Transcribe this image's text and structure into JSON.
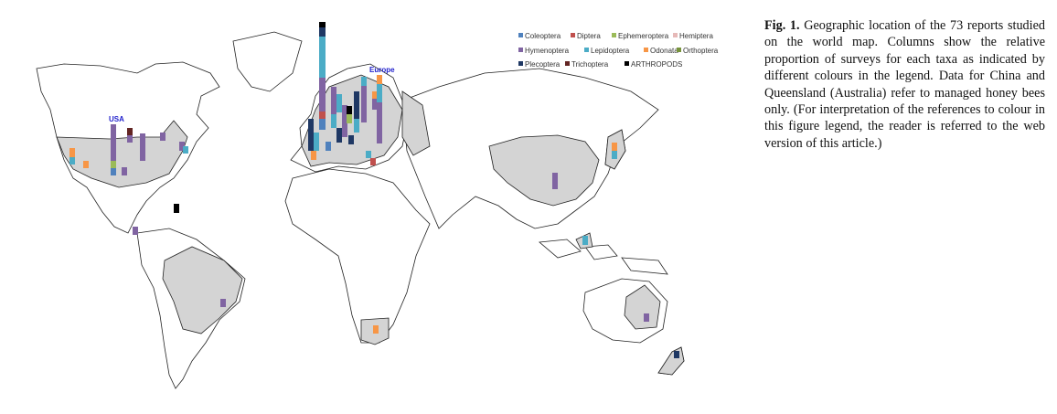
{
  "caption": {
    "label": "Fig. 1.",
    "text": "Geographic location of the 73 reports studied on the world map. Columns show the relative proportion of surveys for each taxa as indicated by different colours in the legend. Data for China and Queensland (Australia) refer to managed honey bees only. (For interpretation of the references to colour in this figure legend, the reader is referred to the web version of this article.)"
  },
  "map": {
    "region_labels": {
      "usa": "USA",
      "europe": "Europe"
    },
    "colors": {
      "land": "#ffffff",
      "border": "#222222",
      "studied": "#d4d4d4"
    }
  },
  "legend": {
    "items": [
      {
        "name": "Coleoptera",
        "color": "#4f81bd"
      },
      {
        "name": "Diptera",
        "color": "#c0504d"
      },
      {
        "name": "Ephemeroptera",
        "color": "#9bbb59"
      },
      {
        "name": "Hemiptera",
        "color": "#e6b9b8"
      },
      {
        "name": "Hymenoptera",
        "color": "#8064a2"
      },
      {
        "name": "Lepidoptera",
        "color": "#4bacc6"
      },
      {
        "name": "Odonata",
        "color": "#f79646"
      },
      {
        "name": "Orthoptera",
        "color": "#77933c"
      },
      {
        "name": "Plecoptera",
        "color": "#1f3864"
      },
      {
        "name": "Trichoptera",
        "color": "#632523"
      },
      {
        "name": "ARTHROPODS",
        "color": "#000000"
      }
    ]
  }
}
